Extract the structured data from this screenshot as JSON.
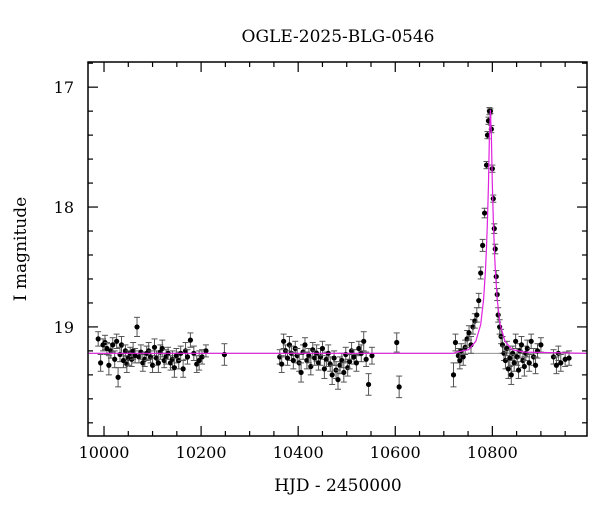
{
  "chart_data": {
    "type": "scatter",
    "title": "OGLE-2025-BLG-0546",
    "xlabel": "HJD - 2450000",
    "ylabel": "I magnitude",
    "xlim": [
      9967,
      10995
    ],
    "ylim": [
      16.79,
      19.91
    ],
    "y_inverted": true,
    "grid": false,
    "xticks": [
      10000,
      10200,
      10400,
      10600,
      10800
    ],
    "xminor_step": 50,
    "yticks": [
      17,
      18,
      19
    ],
    "yminor_step": 0.2,
    "colors": {
      "points": "#000000",
      "errorbars": "#555555",
      "model": "#e020e0",
      "baseline": "#808080"
    },
    "baseline_mag": 19.22,
    "model": [
      [
        9967,
        19.22
      ],
      [
        10720,
        19.22
      ],
      [
        10726,
        19.21
      ],
      [
        10751,
        19.19
      ],
      [
        10766,
        19.12
      ],
      [
        10776,
        18.98
      ],
      [
        10782,
        18.77
      ],
      [
        10786,
        18.52
      ],
      [
        10788,
        18.34
      ],
      [
        10790,
        18.1
      ],
      [
        10792,
        17.8
      ],
      [
        10794,
        17.41
      ],
      [
        10796,
        17.19
      ],
      [
        10798,
        17.41
      ],
      [
        10800,
        17.8
      ],
      [
        10802,
        18.1
      ],
      [
        10804,
        18.34
      ],
      [
        10806,
        18.52
      ],
      [
        10810,
        18.77
      ],
      [
        10816,
        18.98
      ],
      [
        10826,
        19.12
      ],
      [
        10841,
        19.19
      ],
      [
        10866,
        19.21
      ],
      [
        10995,
        19.22
      ]
    ],
    "points": [
      [
        9988,
        19.1,
        0.06
      ],
      [
        9993,
        19.3,
        0.07
      ],
      [
        9998,
        19.15,
        0.05
      ],
      [
        10002,
        19.13,
        0.06
      ],
      [
        10006,
        19.18,
        0.05
      ],
      [
        10010,
        19.32,
        0.08
      ],
      [
        10014,
        19.2,
        0.06
      ],
      [
        10018,
        19.15,
        0.06
      ],
      [
        10022,
        19.27,
        0.07
      ],
      [
        10026,
        19.12,
        0.06
      ],
      [
        10029,
        19.42,
        0.08
      ],
      [
        10033,
        19.23,
        0.06
      ],
      [
        10036,
        19.15,
        0.07
      ],
      [
        10040,
        19.28,
        0.06
      ],
      [
        10044,
        19.2,
        0.05
      ],
      [
        10047,
        19.31,
        0.07
      ],
      [
        10050,
        19.26,
        0.06
      ],
      [
        10054,
        19.22,
        0.05
      ],
      [
        10057,
        19.27,
        0.06
      ],
      [
        10060,
        19.2,
        0.07
      ],
      [
        10064,
        19.24,
        0.06
      ],
      [
        10068,
        19.0,
        0.08
      ],
      [
        10072,
        19.25,
        0.05
      ],
      [
        10076,
        19.21,
        0.06
      ],
      [
        10080,
        19.3,
        0.07
      ],
      [
        10084,
        19.27,
        0.06
      ],
      [
        10088,
        19.22,
        0.06
      ],
      [
        10092,
        19.2,
        0.07
      ],
      [
        10096,
        19.25,
        0.05
      ],
      [
        10100,
        19.32,
        0.06
      ],
      [
        10104,
        19.17,
        0.07
      ],
      [
        10108,
        19.26,
        0.06
      ],
      [
        10112,
        19.3,
        0.08
      ],
      [
        10116,
        19.21,
        0.06
      ],
      [
        10120,
        19.18,
        0.07
      ],
      [
        10124,
        19.28,
        0.06
      ],
      [
        10128,
        19.25,
        0.06
      ],
      [
        10132,
        19.22,
        0.05
      ],
      [
        10137,
        19.3,
        0.06
      ],
      [
        10141,
        19.27,
        0.07
      ],
      [
        10145,
        19.34,
        0.08
      ],
      [
        10149,
        19.24,
        0.06
      ],
      [
        10154,
        19.28,
        0.07
      ],
      [
        10158,
        19.22,
        0.06
      ],
      [
        10163,
        19.35,
        0.07
      ],
      [
        10168,
        19.2,
        0.07
      ],
      [
        10172,
        19.25,
        0.06
      ],
      [
        10178,
        19.11,
        0.06
      ],
      [
        10185,
        19.22,
        0.06
      ],
      [
        10191,
        19.31,
        0.07
      ],
      [
        10196,
        19.28,
        0.08
      ],
      [
        10202,
        19.25,
        0.06
      ],
      [
        10210,
        19.2,
        0.05
      ],
      [
        10248,
        19.23,
        0.09
      ],
      [
        10362,
        19.25,
        0.06
      ],
      [
        10366,
        19.31,
        0.07
      ],
      [
        10370,
        19.12,
        0.06
      ],
      [
        10374,
        19.2,
        0.05
      ],
      [
        10378,
        19.26,
        0.06
      ],
      [
        10382,
        19.15,
        0.07
      ],
      [
        10386,
        19.22,
        0.06
      ],
      [
        10390,
        19.28,
        0.07
      ],
      [
        10394,
        19.18,
        0.06
      ],
      [
        10398,
        19.24,
        0.06
      ],
      [
        10402,
        19.3,
        0.07
      ],
      [
        10406,
        19.38,
        0.08
      ],
      [
        10410,
        19.21,
        0.06
      ],
      [
        10414,
        19.15,
        0.06
      ],
      [
        10418,
        19.28,
        0.07
      ],
      [
        10422,
        19.24,
        0.06
      ],
      [
        10426,
        19.33,
        0.07
      ],
      [
        10430,
        19.19,
        0.06
      ],
      [
        10434,
        19.26,
        0.06
      ],
      [
        10438,
        19.22,
        0.07
      ],
      [
        10442,
        19.3,
        0.06
      ],
      [
        10446,
        19.25,
        0.07
      ],
      [
        10450,
        19.18,
        0.06
      ],
      [
        10454,
        19.35,
        0.08
      ],
      [
        10458,
        19.27,
        0.06
      ],
      [
        10462,
        19.22,
        0.07
      ],
      [
        10466,
        19.31,
        0.06
      ],
      [
        10470,
        19.4,
        0.08
      ],
      [
        10474,
        19.26,
        0.06
      ],
      [
        10478,
        19.36,
        0.07
      ],
      [
        10482,
        19.44,
        0.08
      ],
      [
        10486,
        19.32,
        0.07
      ],
      [
        10490,
        19.28,
        0.06
      ],
      [
        10494,
        19.38,
        0.08
      ],
      [
        10498,
        19.23,
        0.06
      ],
      [
        10502,
        19.34,
        0.07
      ],
      [
        10506,
        19.29,
        0.06
      ],
      [
        10510,
        19.2,
        0.07
      ],
      [
        10515,
        19.25,
        0.06
      ],
      [
        10520,
        19.3,
        0.07
      ],
      [
        10525,
        19.18,
        0.06
      ],
      [
        10530,
        19.22,
        0.07
      ],
      [
        10535,
        19.12,
        0.08
      ],
      [
        10540,
        19.27,
        0.06
      ],
      [
        10545,
        19.48,
        0.09
      ],
      [
        10552,
        19.24,
        0.07
      ],
      [
        10603,
        19.13,
        0.08
      ],
      [
        10608,
        19.5,
        0.09
      ],
      [
        10720,
        19.4,
        0.1
      ],
      [
        10724,
        19.13,
        0.07
      ],
      [
        10730,
        19.24,
        0.06
      ],
      [
        10733,
        19.28,
        0.07
      ],
      [
        10736,
        19.2,
        0.06
      ],
      [
        10740,
        19.25,
        0.07
      ],
      [
        10744,
        19.17,
        0.06
      ],
      [
        10748,
        19.1,
        0.07
      ],
      [
        10752,
        19.05,
        0.06
      ],
      [
        10756,
        19.15,
        0.07
      ],
      [
        10760,
        19.0,
        0.06
      ],
      [
        10764,
        18.95,
        0.06
      ],
      [
        10768,
        18.9,
        0.06
      ],
      [
        10772,
        18.78,
        0.06
      ],
      [
        10776,
        18.55,
        0.05
      ],
      [
        10780,
        18.32,
        0.05
      ],
      [
        10784,
        18.05,
        0.04
      ],
      [
        10788,
        17.65,
        0.03
      ],
      [
        10790,
        17.4,
        0.03
      ],
      [
        10792,
        17.28,
        0.03
      ],
      [
        10794,
        17.2,
        0.03
      ],
      [
        10796,
        17.2,
        0.02
      ],
      [
        10798,
        17.35,
        0.03
      ],
      [
        10800,
        17.68,
        0.03
      ],
      [
        10802,
        17.93,
        0.03
      ],
      [
        10804,
        18.18,
        0.04
      ],
      [
        10806,
        18.35,
        0.04
      ],
      [
        10808,
        18.58,
        0.05
      ],
      [
        10810,
        18.73,
        0.05
      ],
      [
        10812,
        18.9,
        0.06
      ],
      [
        10815,
        19.0,
        0.06
      ],
      [
        10818,
        19.08,
        0.06
      ],
      [
        10821,
        19.15,
        0.07
      ],
      [
        10824,
        19.22,
        0.06
      ],
      [
        10827,
        19.28,
        0.07
      ],
      [
        10830,
        19.18,
        0.06
      ],
      [
        10833,
        19.35,
        0.08
      ],
      [
        10836,
        19.26,
        0.07
      ],
      [
        10839,
        19.4,
        0.08
      ],
      [
        10842,
        19.22,
        0.06
      ],
      [
        10845,
        19.3,
        0.07
      ],
      [
        10848,
        19.12,
        0.06
      ],
      [
        10851,
        19.25,
        0.07
      ],
      [
        10854,
        19.36,
        0.07
      ],
      [
        10857,
        19.2,
        0.06
      ],
      [
        10860,
        19.15,
        0.07
      ],
      [
        10863,
        19.28,
        0.06
      ],
      [
        10866,
        19.33,
        0.08
      ],
      [
        10869,
        19.22,
        0.06
      ],
      [
        10872,
        19.18,
        0.07
      ],
      [
        10876,
        19.3,
        0.07
      ],
      [
        10880,
        19.12,
        0.06
      ],
      [
        10885,
        19.25,
        0.07
      ],
      [
        10889,
        19.32,
        0.07
      ],
      [
        10893,
        19.2,
        0.06
      ],
      [
        10900,
        19.15,
        0.06
      ],
      [
        10926,
        19.25,
        0.06
      ],
      [
        10932,
        19.32,
        0.07
      ],
      [
        10936,
        19.22,
        0.06
      ],
      [
        10941,
        19.3,
        0.07
      ],
      [
        10950,
        19.27,
        0.06
      ],
      [
        10958,
        19.26,
        0.06
      ]
    ]
  }
}
